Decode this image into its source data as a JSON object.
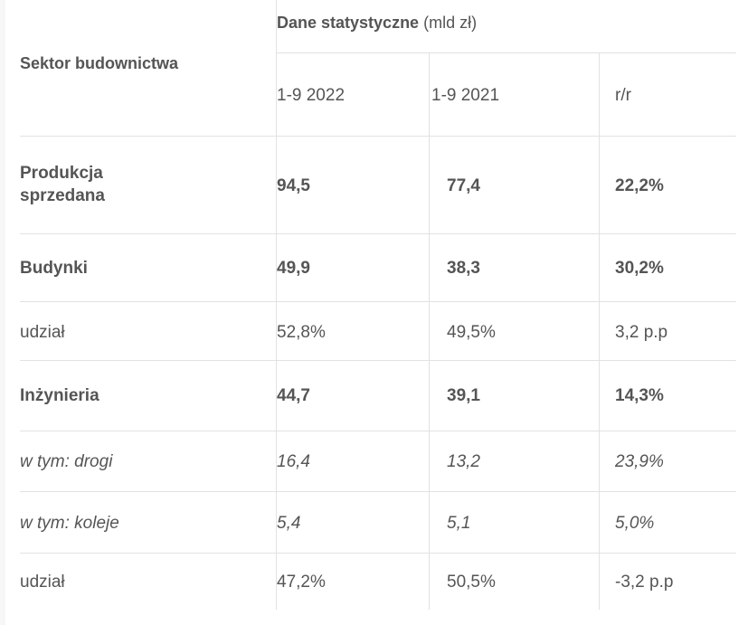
{
  "header": {
    "sector_label": "Sektor budownictwa",
    "group_title": "Dane statystyczne",
    "group_unit": "(mld zł)",
    "columns": [
      "1-9 2022",
      "1-9 2021",
      "r/r"
    ]
  },
  "rows": [
    {
      "label": "Produkcja sprzedana",
      "values": [
        "94,5",
        "77,4",
        "22,2%"
      ],
      "style": "bold"
    },
    {
      "label": "Budynki",
      "values": [
        "49,9",
        "38,3",
        "30,2%"
      ],
      "style": "bold"
    },
    {
      "label": "udział",
      "values": [
        "52,8%",
        "49,5%",
        "3,2 p.p"
      ],
      "style": "normal"
    },
    {
      "label": "Inżynieria",
      "values": [
        "44,7",
        "39,1",
        "14,3%"
      ],
      "style": "bold"
    },
    {
      "label": "w tym: drogi",
      "values": [
        "16,4",
        "13,2",
        "23,9%"
      ],
      "style": "italic"
    },
    {
      "label": "w tym: koleje",
      "values": [
        "5,4",
        "5,1",
        "5,0%"
      ],
      "style": "italic"
    },
    {
      "label": "udział",
      "values": [
        "47,2%",
        "50,5%",
        "-3,2 p.p"
      ],
      "style": "normal"
    }
  ]
}
